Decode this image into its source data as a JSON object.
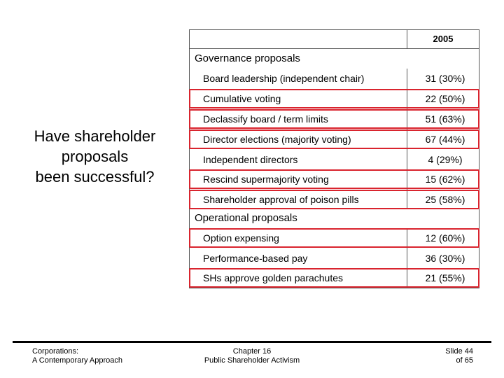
{
  "question": {
    "line1": "Have shareholder",
    "line2": "proposals",
    "line3": "been successful?"
  },
  "table": {
    "year": "2005",
    "governance": {
      "title": "Governance proposals",
      "rows": [
        {
          "label": "Board leadership (independent chair)",
          "value": "31 (30%)",
          "highlighted": false
        },
        {
          "label": "Cumulative voting",
          "value": "22 (50%)",
          "highlighted": true
        },
        {
          "label": "Declassify board / term limits",
          "value": "51 (63%)",
          "highlighted": true
        },
        {
          "label": "Director elections (majority voting)",
          "value": "67 (44%)",
          "highlighted": true
        },
        {
          "label": "Independent directors",
          "value": "4 (29%)",
          "highlighted": false
        },
        {
          "label": "Rescind supermajority voting",
          "value": "15 (62%)",
          "highlighted": true
        },
        {
          "label": "Shareholder approval of poison pills",
          "value": "25 (58%)",
          "highlighted": true
        }
      ]
    },
    "operational": {
      "title": "Operational proposals",
      "rows": [
        {
          "label": "Option expensing",
          "value": "12 (60%)",
          "highlighted": true
        },
        {
          "label": "Performance-based pay",
          "value": "36 (30%)",
          "highlighted": false
        },
        {
          "label": "SHs approve golden parachutes",
          "value": "21 (55%)",
          "highlighted": true
        }
      ]
    },
    "highlight_color": "#d9242e"
  },
  "footer": {
    "left_line1": "Corporations:",
    "left_line2": "A Contemporary Approach",
    "mid_line1": "Chapter 16",
    "mid_line2": "Public Shareholder Activism",
    "right_line1": "Slide 44",
    "right_line2": "of 65"
  }
}
